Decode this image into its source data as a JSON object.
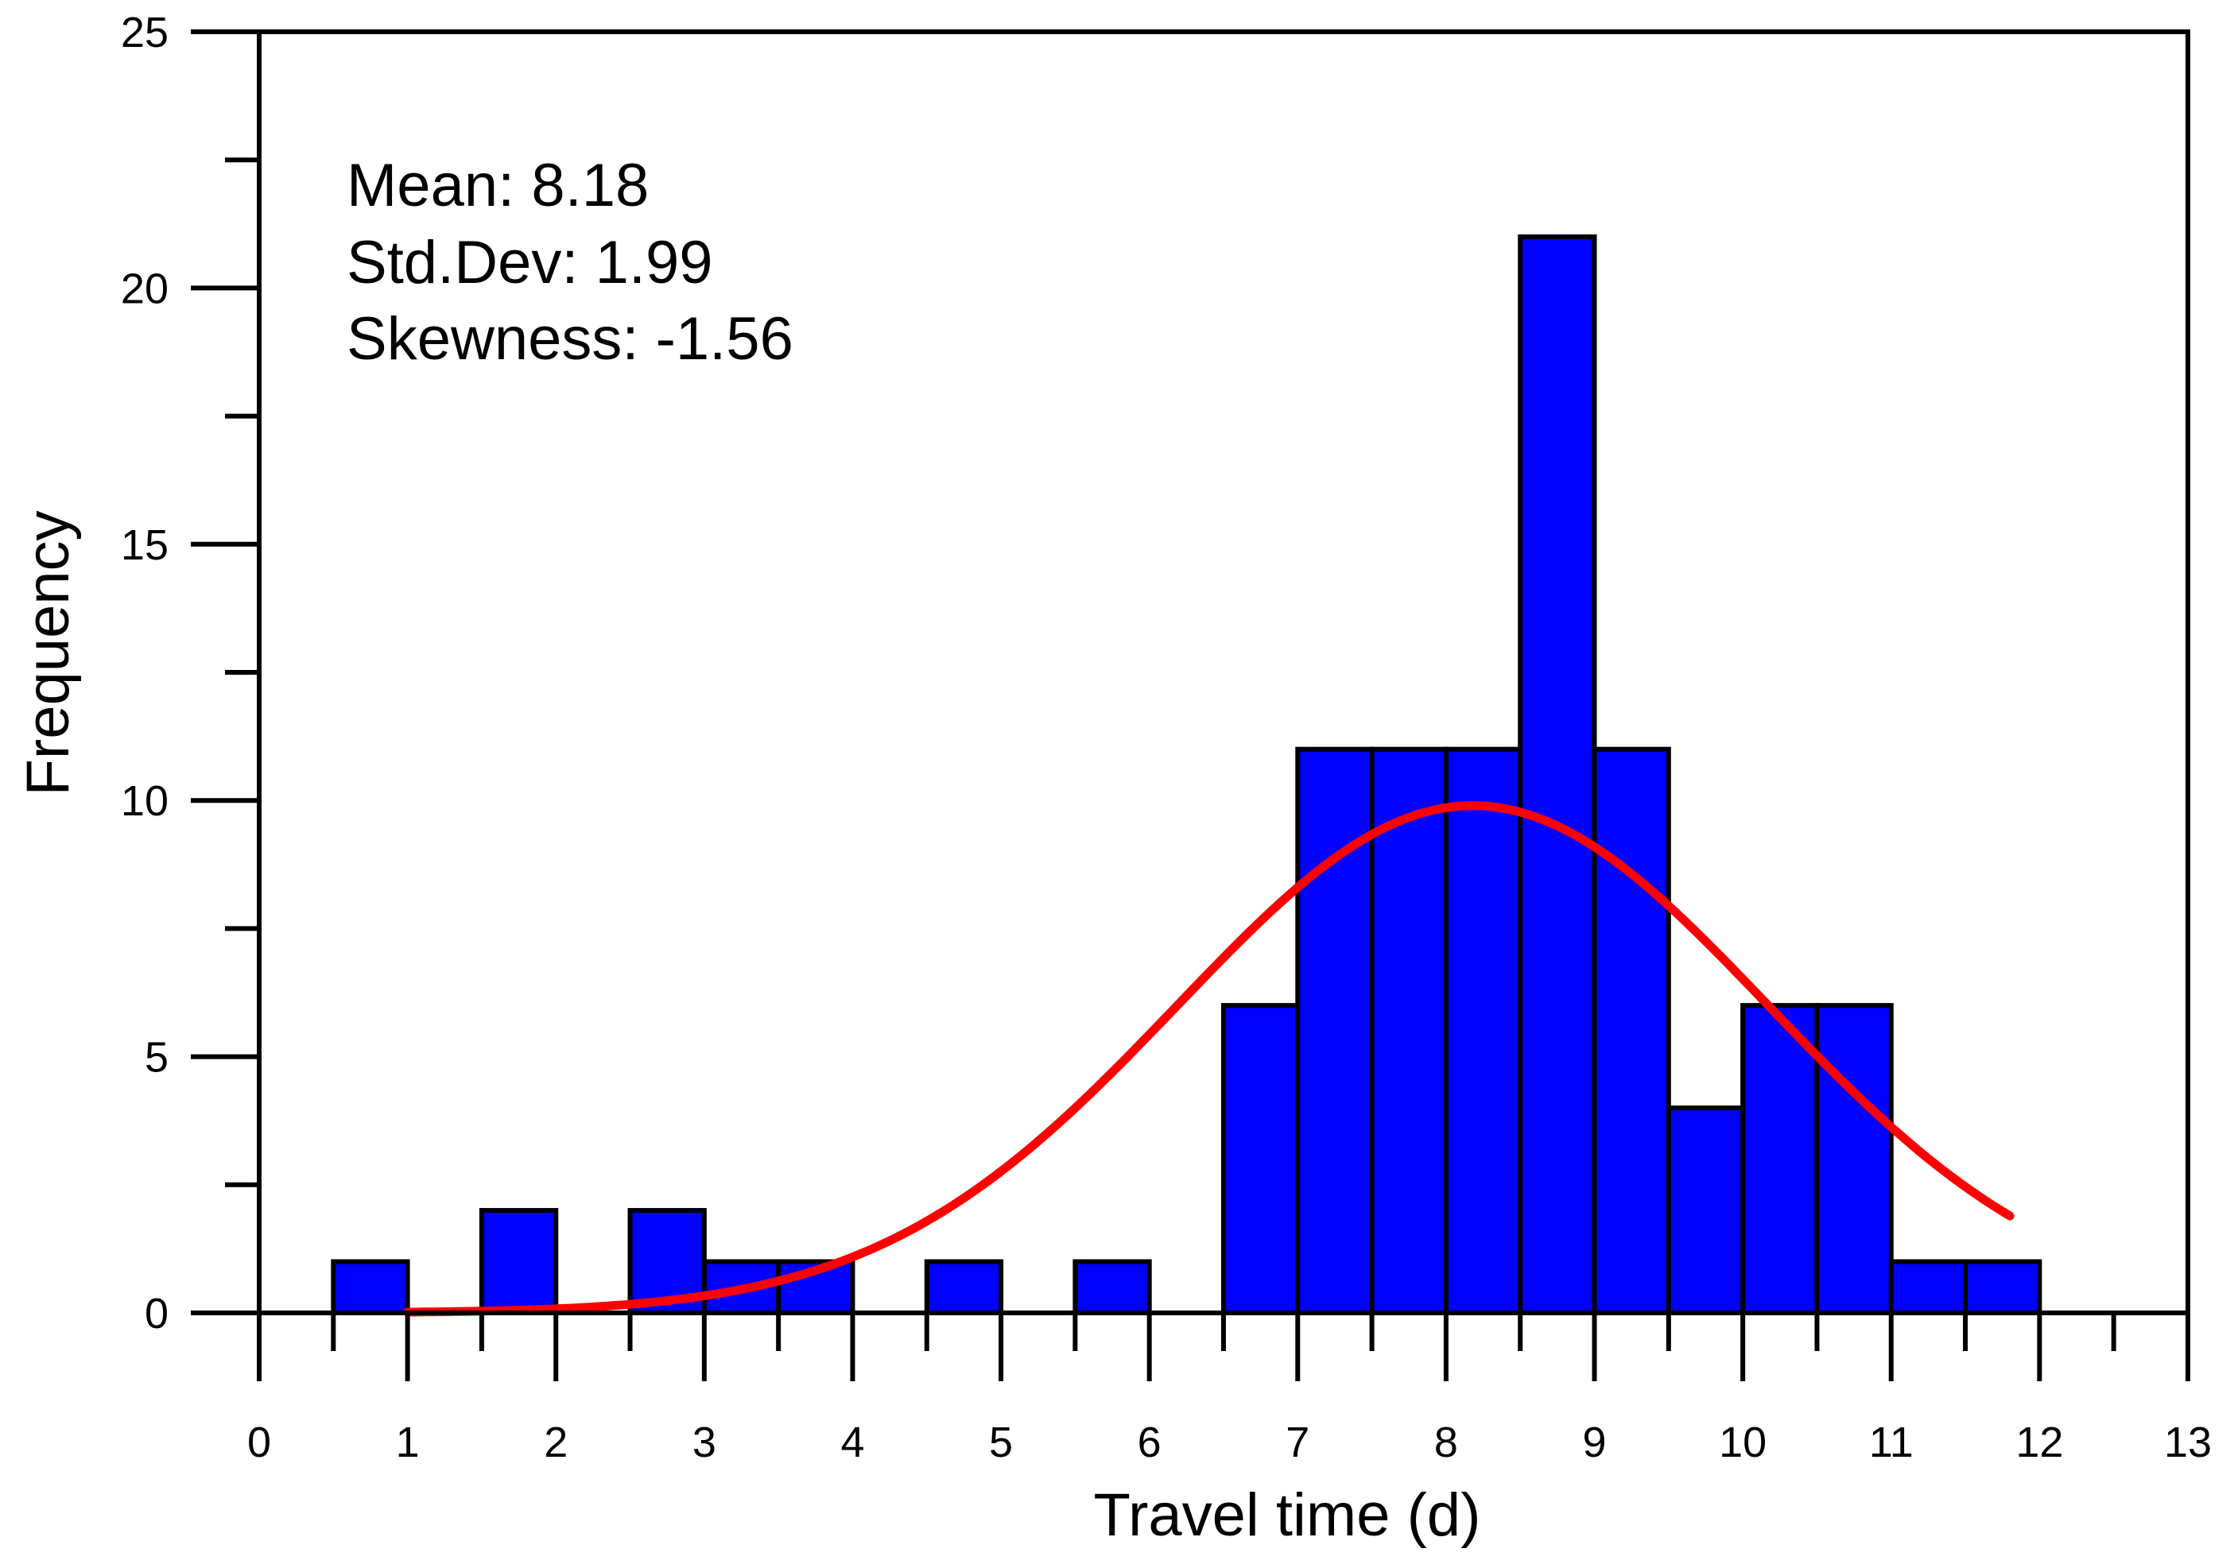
{
  "chart_data": {
    "type": "bar",
    "subtype": "histogram",
    "title": "",
    "xlabel": "Travel time (d)",
    "ylabel": "Frequency",
    "xlim": [
      0,
      13
    ],
    "ylim": [
      0,
      25
    ],
    "x_ticks": [
      0,
      1,
      2,
      3,
      4,
      5,
      6,
      7,
      8,
      9,
      10,
      11,
      12,
      13
    ],
    "y_ticks": [
      0,
      5,
      10,
      15,
      20,
      25
    ],
    "bin_width": 0.5,
    "bins": [
      {
        "x0": 0.5,
        "x1": 1.0,
        "value": 1
      },
      {
        "x0": 1.5,
        "x1": 2.0,
        "value": 2
      },
      {
        "x0": 2.5,
        "x1": 3.0,
        "value": 2
      },
      {
        "x0": 3.0,
        "x1": 3.5,
        "value": 1
      },
      {
        "x0": 3.5,
        "x1": 4.0,
        "value": 1
      },
      {
        "x0": 4.5,
        "x1": 5.0,
        "value": 1
      },
      {
        "x0": 5.5,
        "x1": 6.0,
        "value": 1
      },
      {
        "x0": 6.5,
        "x1": 7.0,
        "value": 6
      },
      {
        "x0": 7.0,
        "x1": 7.5,
        "value": 11
      },
      {
        "x0": 7.5,
        "x1": 8.0,
        "value": 11
      },
      {
        "x0": 8.0,
        "x1": 8.5,
        "value": 11
      },
      {
        "x0": 8.5,
        "x1": 9.0,
        "value": 21
      },
      {
        "x0": 9.0,
        "x1": 9.5,
        "value": 11
      },
      {
        "x0": 9.5,
        "x1": 10.0,
        "value": 4
      },
      {
        "x0": 10.0,
        "x1": 10.5,
        "value": 6
      },
      {
        "x0": 10.5,
        "x1": 11.0,
        "value": 6
      },
      {
        "x0": 11.0,
        "x1": 11.5,
        "value": 1
      },
      {
        "x0": 11.5,
        "x1": 12.0,
        "value": 1
      }
    ],
    "fit_curve": {
      "type": "normal",
      "mean": 8.18,
      "std": 1.99,
      "peak": 9.9,
      "x_range": [
        1.0,
        11.8
      ]
    },
    "annotations": {
      "mean": "Mean: 8.18",
      "std": "Std.Dev: 1.99",
      "skewness": "Skewness: -1.56"
    },
    "colors": {
      "bar_fill": "#0000ff",
      "bar_stroke": "#000000",
      "curve": "#ff0000",
      "axis": "#000000"
    },
    "grid": false
  }
}
